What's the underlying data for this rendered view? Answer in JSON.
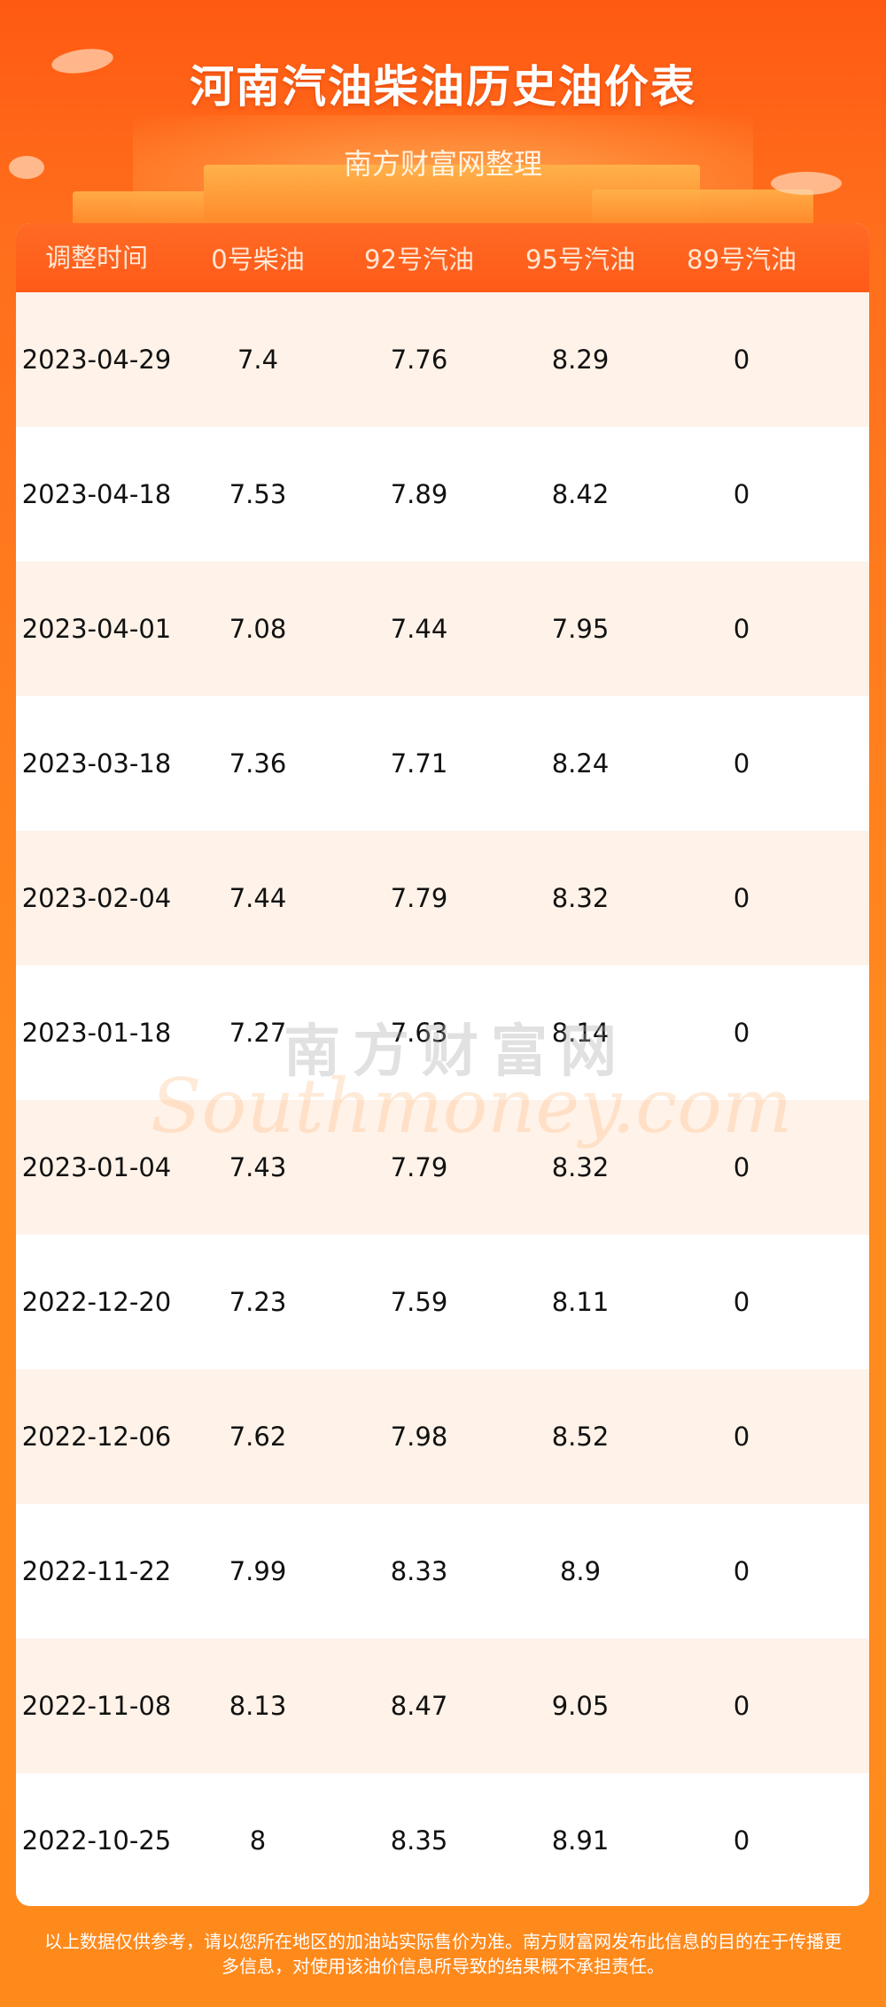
{
  "header": {
    "title": "河南汽油柴油历史油价表",
    "subtitle": "南方财富网整理"
  },
  "table": {
    "columns": [
      "调整时间",
      "0号柴油",
      "92号汽油",
      "95号汽油",
      "89号汽油"
    ],
    "rows": [
      [
        "2023-04-29",
        "7.4",
        "7.76",
        "8.29",
        "0"
      ],
      [
        "2023-04-18",
        "7.53",
        "7.89",
        "8.42",
        "0"
      ],
      [
        "2023-04-01",
        "7.08",
        "7.44",
        "7.95",
        "0"
      ],
      [
        "2023-03-18",
        "7.36",
        "7.71",
        "8.24",
        "0"
      ],
      [
        "2023-02-04",
        "7.44",
        "7.79",
        "8.32",
        "0"
      ],
      [
        "2023-01-18",
        "7.27",
        "7.63",
        "8.14",
        "0"
      ],
      [
        "2023-01-04",
        "7.43",
        "7.79",
        "8.32",
        "0"
      ],
      [
        "2022-12-20",
        "7.23",
        "7.59",
        "8.11",
        "0"
      ],
      [
        "2022-12-06",
        "7.62",
        "7.98",
        "8.52",
        "0"
      ],
      [
        "2022-11-22",
        "7.99",
        "8.33",
        "8.9",
        "0"
      ],
      [
        "2022-11-08",
        "8.13",
        "8.47",
        "9.05",
        "0"
      ],
      [
        "2022-10-25",
        "8",
        "8.35",
        "8.91",
        "0"
      ]
    ]
  },
  "watermark": {
    "cn": "南方财富网",
    "en": "Southmoney.com"
  },
  "footer": {
    "line1": "以上数据仅供参考，请以您所在地区的加油站实际售价为准。南方财富网发布此信息的目的在于传播更",
    "line2": "多信息，对使用该油价信息所导致的结果概不承担责任。"
  },
  "colors": {
    "background": "#ff7a1e",
    "header_row": "#ff6220",
    "odd_row": "#fff2e8"
  }
}
